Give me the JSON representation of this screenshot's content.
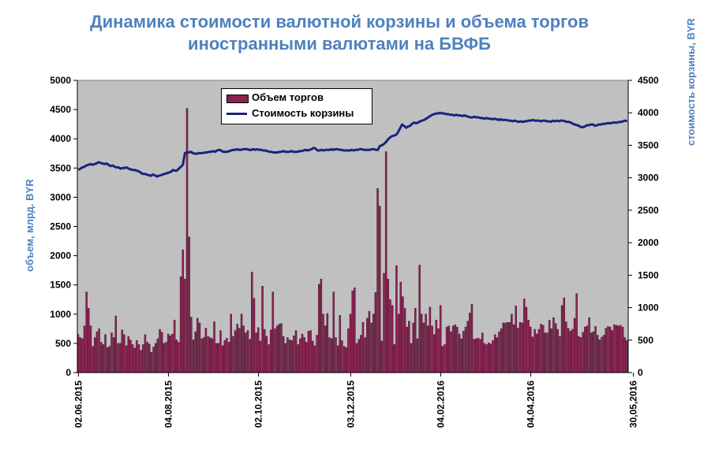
{
  "title_line1": "Динамика стоимости валютной корзины и объема торгов",
  "title_line2": "иностранными валютами на БВФБ",
  "colors": {
    "bar": "#8b2252",
    "line": "#1a237e",
    "plot_bg": "#c0c0c0",
    "title": "#4f81bd"
  },
  "chart_data": {
    "type": "bar",
    "title": "Динамика стоимости валютной корзины и объема торгов иностранными валютами на БВФБ",
    "ylabel": "объем, млрд. BYR",
    "y2label": "стоимость корзины, BYR",
    "ylim": [
      0,
      5000
    ],
    "y2lim": [
      0,
      4500
    ],
    "yticks": [
      "0",
      "500",
      "1000",
      "1500",
      "2000",
      "2500",
      "3000",
      "3500",
      "4000",
      "4500",
      "5000"
    ],
    "y2ticks": [
      "0",
      "500",
      "1000",
      "1500",
      "2000",
      "2500",
      "3000",
      "3500",
      "4000",
      "4500"
    ],
    "xtick_labels": [
      "02.06.2015",
      "04.08.2015",
      "02.10.2015",
      "03.12.2015",
      "04.02.2016",
      "04.04.2016",
      "30,05,2016"
    ],
    "xtick_index": [
      0,
      43,
      86,
      130,
      173,
      216,
      265
    ],
    "legend": {
      "position": "top-center",
      "entries": [
        "Объем торгов",
        "Стоимость корзины"
      ]
    },
    "series": [
      {
        "name": "Объем торгов",
        "type": "bar",
        "axis": "left",
        "values": [
          650,
          600,
          580,
          800,
          1380,
          1100,
          800,
          450,
          600,
          700,
          750,
          520,
          480,
          650,
          430,
          450,
          680,
          600,
          970,
          500,
          500,
          730,
          650,
          460,
          620,
          560,
          480,
          420,
          550,
          480,
          380,
          480,
          650,
          520,
          490,
          350,
          440,
          500,
          580,
          740,
          690,
          500,
          520,
          660,
          630,
          660,
          900,
          560,
          520,
          1640,
          2100,
          1600,
          4520,
          2320,
          950,
          560,
          700,
          930,
          850,
          580,
          600,
          760,
          620,
          600,
          580,
          870,
          500,
          500,
          720,
          460,
          550,
          590,
          520,
          1000,
          620,
          720,
          830,
          760,
          1000,
          800,
          680,
          720,
          570,
          1720,
          1270,
          680,
          770,
          540,
          1480,
          740,
          620,
          480,
          730,
          1380,
          750,
          800,
          830,
          840,
          620,
          500,
          600,
          560,
          550,
          630,
          720,
          480,
          580,
          660,
          600,
          520,
          710,
          720,
          540,
          460,
          640,
          1510,
          1600,
          1000,
          800,
          1010,
          600,
          580,
          1380,
          600,
          460,
          980,
          550,
          450,
          430,
          750,
          1000,
          1400,
          1450,
          500,
          570,
          640,
          860,
          600,
          930,
          1050,
          850,
          1000,
          1370,
          3150,
          2850,
          540,
          1700,
          3780,
          1600,
          1250,
          1150,
          480,
          1830,
          1000,
          1550,
          1300,
          1100,
          780,
          880,
          500,
          850,
          1100,
          580,
          1840,
          1000,
          850,
          1000,
          800,
          1120,
          800,
          650,
          900,
          750,
          1150,
          450,
          480,
          780,
          800,
          700,
          800,
          820,
          780,
          660,
          580,
          710,
          780,
          880,
          1020,
          1170,
          570,
          580,
          590,
          570,
          680,
          500,
          480,
          510,
          490,
          550,
          650,
          600,
          700,
          750,
          850,
          850,
          860,
          860,
          1000,
          820,
          1140,
          760,
          860,
          850,
          1260,
          1120,
          900,
          780,
          610,
          740,
          660,
          740,
          830,
          810,
          680,
          680,
          900,
          750,
          940,
          840,
          740,
          620,
          1150,
          1280,
          870,
          760,
          710,
          740,
          930,
          1350,
          620,
          600,
          690,
          780,
          800,
          940,
          680,
          700,
          790,
          640,
          560,
          610,
          640,
          760,
          790,
          780,
          720,
          820,
          810,
          800,
          810,
          780,
          600,
          550
        ]
      },
      {
        "name": "Стоимость корзины",
        "type": "line",
        "axis": "right",
        "values": [
          3120,
          3140,
          3160,
          3170,
          3190,
          3200,
          3210,
          3200,
          3210,
          3220,
          3240,
          3230,
          3220,
          3210,
          3220,
          3200,
          3180,
          3190,
          3170,
          3160,
          3160,
          3140,
          3150,
          3150,
          3160,
          3140,
          3130,
          3120,
          3120,
          3110,
          3100,
          3080,
          3060,
          3060,
          3050,
          3040,
          3030,
          3050,
          3040,
          3020,
          3030,
          3040,
          3050,
          3060,
          3070,
          3080,
          3090,
          3120,
          3110,
          3110,
          3140,
          3170,
          3200,
          3380,
          3390,
          3390,
          3400,
          3380,
          3370,
          3370,
          3380,
          3380,
          3380,
          3390,
          3390,
          3400,
          3400,
          3410,
          3400,
          3420,
          3430,
          3420,
          3400,
          3400,
          3400,
          3410,
          3420,
          3430,
          3430,
          3440,
          3430,
          3430,
          3440,
          3440,
          3440,
          3430,
          3430,
          3440,
          3430,
          3440,
          3430,
          3430,
          3420,
          3420,
          3410,
          3400,
          3400,
          3390,
          3390,
          3390,
          3400,
          3400,
          3410,
          3400,
          3400,
          3400,
          3410,
          3400,
          3400,
          3400,
          3410,
          3410,
          3420,
          3430,
          3420,
          3430,
          3440,
          3460,
          3450,
          3420,
          3420,
          3430,
          3420,
          3430,
          3430,
          3430,
          3440,
          3430,
          3440,
          3440,
          3430,
          3430,
          3420,
          3420,
          3420,
          3420,
          3430,
          3420,
          3430,
          3430,
          3440,
          3440,
          3430,
          3430,
          3430,
          3430,
          3440,
          3440,
          3430,
          3430,
          3490,
          3500,
          3520,
          3550,
          3590,
          3620,
          3640,
          3650,
          3660,
          3700,
          3760,
          3820,
          3800,
          3770,
          3790,
          3800,
          3830,
          3850,
          3840,
          3850,
          3870,
          3880,
          3890,
          3910,
          3930,
          3950,
          3970,
          3980,
          3990,
          3990,
          4000,
          3990,
          3990,
          3980,
          3980,
          3970,
          3970,
          3960,
          3970,
          3960,
          3960,
          3950,
          3960,
          3950,
          3940,
          3930,
          3930,
          3940,
          3930,
          3930,
          3920,
          3920,
          3910,
          3920,
          3910,
          3910,
          3900,
          3910,
          3900,
          3890,
          3900,
          3890,
          3890,
          3890,
          3880,
          3880,
          3870,
          3880,
          3870,
          3860,
          3870,
          3860,
          3870,
          3870,
          3880,
          3880,
          3890,
          3880,
          3880,
          3880,
          3870,
          3880,
          3880,
          3870,
          3870,
          3860,
          3880,
          3870,
          3880,
          3870,
          3880,
          3880,
          3870,
          3860,
          3860,
          3850,
          3830,
          3820,
          3810,
          3800,
          3780,
          3780,
          3790,
          3810,
          3810,
          3820,
          3820,
          3800,
          3810,
          3820,
          3820,
          3830,
          3830,
          3840,
          3840,
          3840,
          3850,
          3850,
          3850,
          3860,
          3860,
          3870,
          3880,
          3870
        ]
      }
    ]
  }
}
